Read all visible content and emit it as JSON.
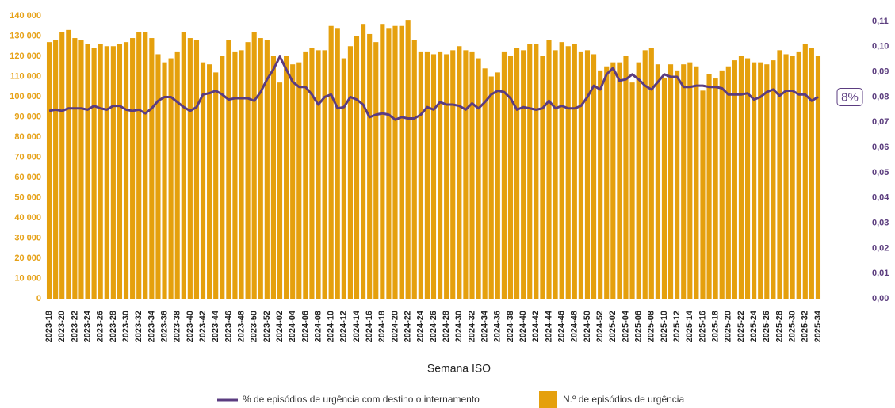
{
  "chart_data": {
    "type": "bar_line",
    "x_axis_label": "Semana ISO",
    "annotation": "8%",
    "grid": false,
    "categories": [
      "2023-18",
      null,
      "2023-20",
      null,
      "2023-22",
      null,
      "2023-24",
      null,
      "2023-26",
      null,
      "2023-28",
      null,
      "2023-30",
      null,
      "2023-32",
      null,
      "2023-34",
      null,
      "2023-36",
      null,
      "2023-38",
      null,
      "2023-40",
      null,
      "2023-42",
      null,
      "2023-44",
      null,
      "2023-46",
      null,
      "2023-48",
      null,
      "2023-50",
      null,
      "2023-52",
      null,
      "2024-02",
      null,
      "2024-04",
      null,
      "2024-06",
      null,
      "2024-08",
      null,
      "2024-10",
      null,
      "2024-12",
      null,
      "2024-14",
      null,
      "2024-16",
      null,
      "2024-18",
      null,
      "2024-20",
      null,
      "2024-22",
      null,
      "2024-24",
      null,
      "2024-26",
      null,
      "2024-28",
      null,
      "2024-30",
      null,
      "2024-32",
      null,
      "2024-34",
      null,
      "2024-36",
      null,
      "2024-38",
      null,
      "2024-40",
      null,
      "2024-42",
      null,
      "2024-44",
      null,
      "2024-46",
      null,
      "2024-48",
      null,
      "2024-50",
      null,
      "2024-52",
      null,
      "2025-02",
      null,
      "2025-04",
      null,
      "2025-06",
      null,
      "2025-08",
      null,
      "2025-10",
      null,
      "2025-12",
      null,
      "2025-14",
      null,
      "2025-16",
      null,
      "2025-18",
      null,
      "2025-20",
      null,
      "2025-22",
      null,
      "2025-24",
      null,
      "2025-26",
      null,
      "2025-28",
      null,
      "2025-30",
      null,
      "2025-32",
      null,
      "2025-34"
    ],
    "series": [
      {
        "name": "N.º de episódios de urgência",
        "kind": "bar",
        "color": "#e5a00d",
        "values": [
          127000,
          128000,
          132000,
          133000,
          129000,
          128000,
          126000,
          124000,
          126000,
          125000,
          125000,
          126000,
          127000,
          129000,
          132000,
          132000,
          129000,
          121000,
          117000,
          119000,
          122000,
          132000,
          129000,
          128000,
          117000,
          116000,
          112000,
          120000,
          128000,
          122000,
          123000,
          127000,
          132000,
          129000,
          128000,
          120000,
          107000,
          120000,
          116000,
          117000,
          122000,
          124000,
          123000,
          123000,
          135000,
          134000,
          119000,
          125000,
          130000,
          136000,
          131000,
          127000,
          136000,
          134000,
          135000,
          135000,
          138000,
          128000,
          122000,
          122000,
          121000,
          122000,
          121000,
          123000,
          125000,
          123000,
          122000,
          119000,
          114000,
          110000,
          112000,
          122000,
          120000,
          124000,
          123000,
          126000,
          126000,
          120000,
          128000,
          123000,
          127000,
          125000,
          126000,
          122000,
          123000,
          121000,
          113000,
          115000,
          117000,
          117000,
          120000,
          107000,
          117000,
          123000,
          124000,
          116000,
          109000,
          116000,
          113000,
          116000,
          117000,
          115000,
          103000,
          111000,
          109000,
          113000,
          115000,
          118000,
          120000,
          119000,
          117000,
          117000,
          116000,
          118000,
          123000,
          121000,
          120000,
          122000,
          126000,
          124000,
          120000
        ]
      },
      {
        "name": "% de episódios de urgência com destino o internamento",
        "kind": "line",
        "axis": "y2",
        "color": "#5b3c80",
        "values": [
          0.0745,
          0.075,
          0.0745,
          0.0755,
          0.0755,
          0.0755,
          0.075,
          0.0765,
          0.0755,
          0.075,
          0.0765,
          0.0765,
          0.075,
          0.0745,
          0.075,
          0.0735,
          0.0755,
          0.0785,
          0.08,
          0.08,
          0.078,
          0.076,
          0.0745,
          0.076,
          0.081,
          0.0815,
          0.0825,
          0.081,
          0.079,
          0.0795,
          0.0795,
          0.0795,
          0.0785,
          0.082,
          0.087,
          0.091,
          0.096,
          0.091,
          0.086,
          0.084,
          0.084,
          0.081,
          0.077,
          0.08,
          0.081,
          0.0755,
          0.076,
          0.08,
          0.079,
          0.077,
          0.072,
          0.073,
          0.0735,
          0.073,
          0.071,
          0.072,
          0.0715,
          0.0715,
          0.073,
          0.076,
          0.075,
          0.078,
          0.077,
          0.077,
          0.0765,
          0.075,
          0.0775,
          0.0755,
          0.078,
          0.081,
          0.0825,
          0.082,
          0.0795,
          0.075,
          0.076,
          0.0755,
          0.075,
          0.0755,
          0.0785,
          0.0755,
          0.0765,
          0.0755,
          0.0755,
          0.0765,
          0.08,
          0.0845,
          0.083,
          0.089,
          0.0915,
          0.0865,
          0.087,
          0.089,
          0.087,
          0.0845,
          0.083,
          0.086,
          0.089,
          0.088,
          0.088,
          0.084,
          0.084,
          0.0845,
          0.0845,
          0.084,
          0.084,
          0.0835,
          0.081,
          0.081,
          0.081,
          0.0815,
          0.079,
          0.08,
          0.082,
          0.083,
          0.0805,
          0.0825,
          0.0825,
          0.081,
          0.081,
          0.0785,
          0.08
        ]
      }
    ],
    "ylim": [
      0,
      140000
    ],
    "yticks": [
      0,
      {
        "value": 10000,
        "label": "10 000"
      },
      {
        "value": 20000,
        "label": "20 000"
      },
      {
        "value": 30000,
        "label": "30 000"
      },
      {
        "value": 40000,
        "label": "40 000"
      },
      {
        "value": 50000,
        "label": "50 000"
      },
      {
        "value": 60000,
        "label": "60 000"
      },
      {
        "value": 70000,
        "label": "70 000"
      },
      {
        "value": 80000,
        "label": "80 000"
      },
      {
        "value": 90000,
        "label": "90 000"
      },
      {
        "value": 100000,
        "label": "100 000"
      },
      {
        "value": 110000,
        "label": "110 000"
      },
      {
        "value": 120000,
        "label": "120 000"
      },
      {
        "value": 130000,
        "label": "130 000"
      },
      {
        "value": 140000,
        "label": "140 000"
      }
    ],
    "y2lim": [
      0,
      0.11
    ],
    "y2ticks": [
      {
        "value": 0,
        "label": "0,00"
      },
      {
        "value": 0.01,
        "label": "0,01"
      },
      {
        "value": 0.02,
        "label": "0,02"
      },
      {
        "value": 0.03,
        "label": "0,03"
      },
      {
        "value": 0.04,
        "label": "0,04"
      },
      {
        "value": 0.05,
        "label": "0,05"
      },
      {
        "value": 0.06,
        "label": "0,06"
      },
      {
        "value": 0.07,
        "label": "0,07"
      },
      {
        "value": 0.08,
        "label": "0,08"
      },
      {
        "value": 0.09,
        "label": "0,09"
      },
      {
        "value": 0.1,
        "label": "0,10"
      },
      {
        "value": 0.11,
        "label": "0,11"
      }
    ]
  }
}
